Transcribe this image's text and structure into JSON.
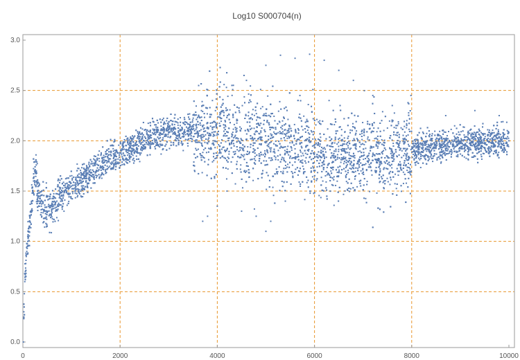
{
  "chart_data": {
    "type": "scatter",
    "title": "Log10 S000704(n)",
    "xlabel": "",
    "ylabel": "",
    "xlim": [
      0,
      10000
    ],
    "ylim": [
      0,
      3.0
    ],
    "x_ticks": [
      0,
      2000,
      4000,
      6000,
      8000,
      10000
    ],
    "y_ticks": [
      0.0,
      0.5,
      1.0,
      1.5,
      2.0,
      2.5,
      3.0
    ],
    "x_tick_labels": [
      "0",
      "2000",
      "4000",
      "6000",
      "8000",
      "10000"
    ],
    "y_tick_labels": [
      "0.0",
      "0.5",
      "1.0",
      "1.5",
      "2.0",
      "2.5",
      "3.0"
    ],
    "gridlines_x": [
      2000,
      4000,
      6000,
      8000
    ],
    "gridlines_y": [
      0.5,
      1.0,
      1.5,
      2.0,
      2.5
    ],
    "grid": true,
    "point_color": "#5b7fb5",
    "grid_color": "#e8952a",
    "series": [
      {
        "points": [
          [
            10,
            0.0
          ],
          [
            20,
            0.3
          ],
          [
            30,
            0.48
          ],
          [
            40,
            0.6
          ],
          [
            50,
            0.7
          ],
          [
            60,
            0.78
          ],
          [
            70,
            0.85
          ],
          [
            80,
            0.9
          ],
          [
            90,
            0.95
          ],
          [
            100,
            1.0
          ],
          [
            110,
            1.05
          ],
          [
            120,
            1.1
          ],
          [
            130,
            1.15
          ],
          [
            140,
            1.2
          ],
          [
            150,
            1.25
          ],
          [
            160,
            1.3
          ],
          [
            180,
            1.4
          ],
          [
            200,
            1.5
          ],
          [
            220,
            1.6
          ],
          [
            240,
            1.7
          ],
          [
            260,
            1.68
          ],
          [
            280,
            1.6
          ],
          [
            300,
            1.5
          ],
          [
            320,
            1.45
          ],
          [
            340,
            1.4
          ],
          [
            360,
            1.38
          ],
          [
            380,
            1.35
          ],
          [
            400,
            1.32
          ],
          [
            450,
            1.3
          ],
          [
            500,
            1.3
          ],
          [
            600,
            1.35
          ],
          [
            700,
            1.4
          ],
          [
            800,
            1.45
          ],
          [
            900,
            1.5
          ],
          [
            1000,
            1.55
          ],
          [
            1200,
            1.6
          ],
          [
            1400,
            1.68
          ],
          [
            1600,
            1.75
          ],
          [
            1800,
            1.82
          ],
          [
            2000,
            1.88
          ],
          [
            2200,
            1.93
          ],
          [
            2400,
            1.98
          ],
          [
            2600,
            2.02
          ],
          [
            2800,
            2.06
          ],
          [
            3000,
            2.08
          ],
          [
            3200,
            2.1
          ],
          [
            3400,
            2.1
          ],
          [
            3600,
            2.09
          ],
          [
            3800,
            2.08
          ],
          [
            4000,
            2.07
          ],
          [
            4200,
            2.05
          ],
          [
            4400,
            2.03
          ],
          [
            4600,
            2.01
          ],
          [
            4800,
            2.0
          ],
          [
            5000,
            1.98
          ],
          [
            5200,
            1.96
          ],
          [
            5400,
            1.94
          ],
          [
            5600,
            1.92
          ],
          [
            5800,
            1.9
          ],
          [
            6000,
            1.88
          ],
          [
            6200,
            1.86
          ],
          [
            6400,
            1.85
          ],
          [
            6600,
            1.84
          ],
          [
            6800,
            1.84
          ],
          [
            7000,
            1.85
          ],
          [
            7200,
            1.86
          ],
          [
            7400,
            1.87
          ],
          [
            7600,
            1.88
          ],
          [
            7800,
            1.9
          ],
          [
            8000,
            1.92
          ],
          [
            8200,
            1.93
          ],
          [
            8400,
            1.95
          ],
          [
            8600,
            1.96
          ],
          [
            8800,
            1.97
          ],
          [
            9000,
            1.98
          ],
          [
            9200,
            1.98
          ],
          [
            9400,
            1.99
          ],
          [
            9600,
            1.99
          ],
          [
            9800,
            2.0
          ],
          [
            10000,
            2.0
          ],
          [
            3700,
            1.2
          ],
          [
            3800,
            1.25
          ],
          [
            4000,
            1.35
          ],
          [
            4200,
            1.5
          ],
          [
            4500,
            1.3
          ],
          [
            4800,
            1.25
          ],
          [
            5100,
            1.2
          ],
          [
            5400,
            1.4
          ],
          [
            5000,
            1.1
          ],
          [
            4300,
            2.55
          ],
          [
            4600,
            2.6
          ],
          [
            5000,
            2.75
          ],
          [
            5300,
            2.85
          ],
          [
            5600,
            2.82
          ],
          [
            5900,
            2.86
          ],
          [
            6200,
            2.8
          ],
          [
            6500,
            2.7
          ],
          [
            6800,
            2.6
          ],
          [
            7200,
            2.45
          ],
          [
            7600,
            2.35
          ],
          [
            7900,
            2.2
          ],
          [
            3900,
            2.4
          ],
          [
            4100,
            2.3
          ],
          [
            5700,
            2.45
          ],
          [
            6300,
            2.4
          ],
          [
            8700,
            2.25
          ],
          [
            9300,
            2.3
          ],
          [
            9800,
            2.25
          ]
        ]
      }
    ]
  }
}
